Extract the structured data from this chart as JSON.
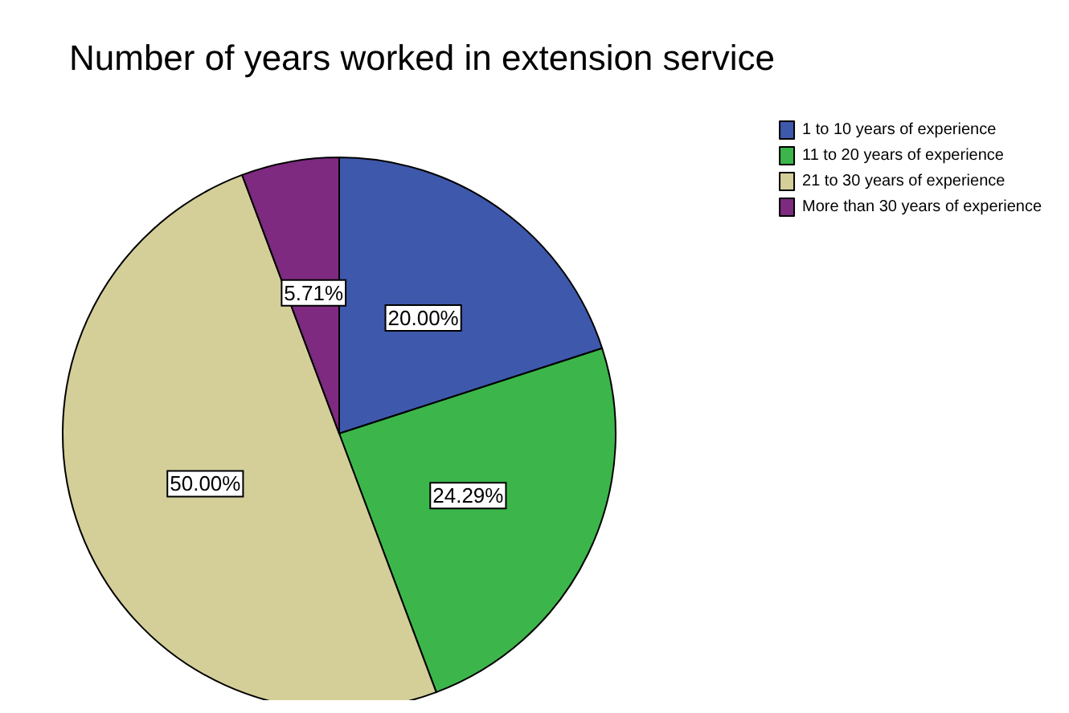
{
  "chart_data": {
    "type": "pie",
    "title": "Number of years worked in extension service",
    "categories": [
      "1 to 10 years of experience",
      "11 to 20 years of experience",
      "21 to 30 years of experience",
      "More than 30 years of experience"
    ],
    "values": [
      20,
      24.29,
      50,
      5.71
    ],
    "value_labels": [
      "20.00%",
      "24.29%",
      "50.00%",
      "5.71%"
    ],
    "colors": [
      "#3e58ac",
      "#3cb64a",
      "#d4cf98",
      "#7d2a80"
    ],
    "legend": "top right"
  }
}
